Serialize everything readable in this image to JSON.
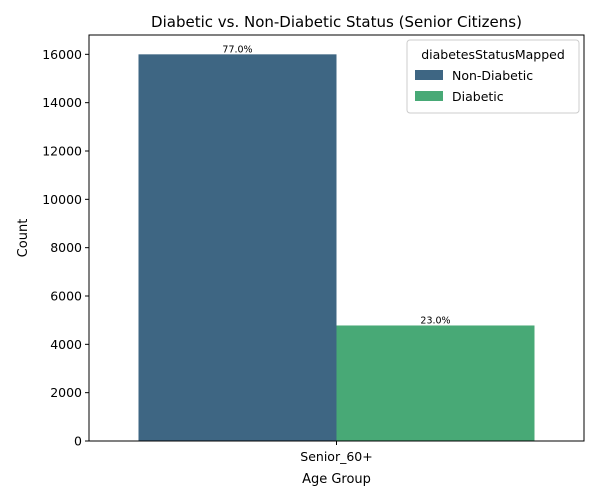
{
  "chart_data": {
    "type": "bar",
    "title": "Diabetic vs. Non-Diabetic Status (Senior Citizens)",
    "xlabel": "Age Group",
    "ylabel": "Count",
    "categories": [
      "Senior_60+"
    ],
    "ylim": [
      0,
      16800
    ],
    "yticks": [
      0,
      2000,
      4000,
      6000,
      8000,
      10000,
      12000,
      14000,
      16000
    ],
    "grid": false,
    "legend": {
      "title": "diabetesStatusMapped",
      "placement": "top-right"
    },
    "series": [
      {
        "name": "Non-Diabetic",
        "values": [
          16000
        ],
        "label": "77.0%",
        "color": "#3e6683"
      },
      {
        "name": "Diabetic",
        "values": [
          4780
        ],
        "label": "23.0%",
        "color": "#48a976"
      }
    ]
  }
}
